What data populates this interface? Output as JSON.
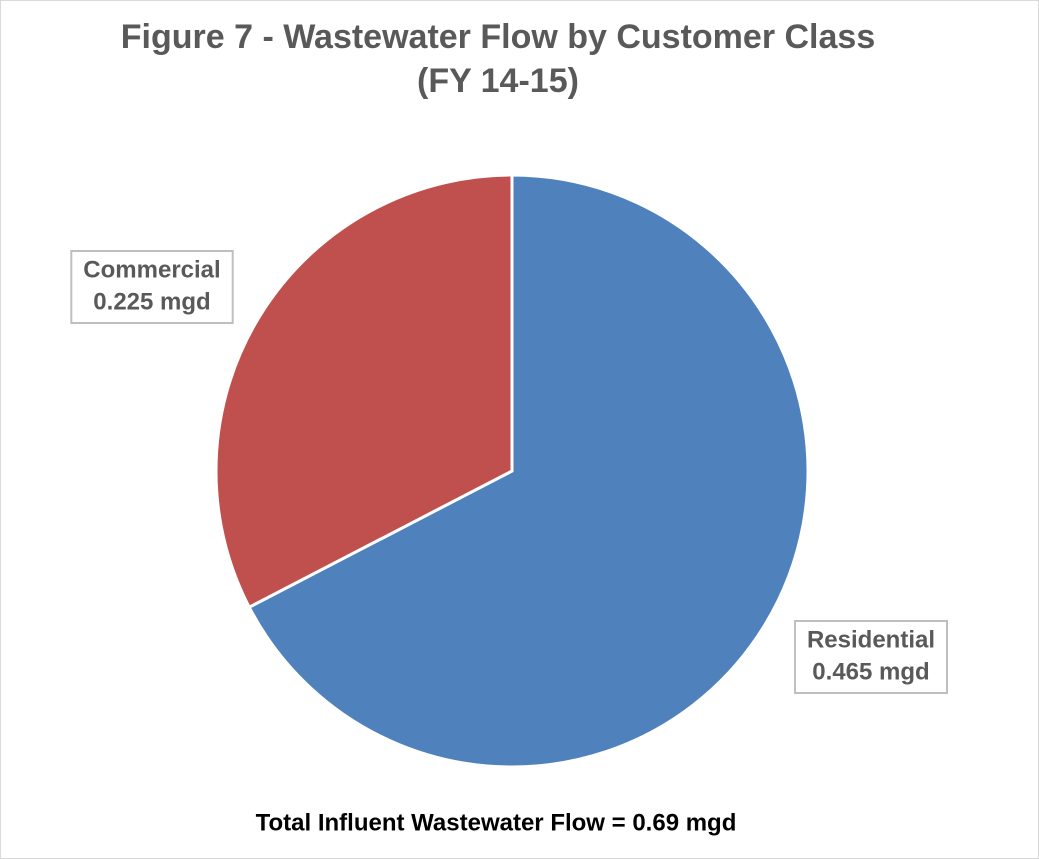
{
  "chart_data": {
    "type": "pie",
    "title": "Figure 7 - Wastewater Flow by Customer Class (FY 14-15)",
    "categories": [
      "Residential",
      "Commercial"
    ],
    "values": [
      0.465,
      0.225
    ],
    "value_labels": [
      "0.465 mgd",
      "0.225 mgd"
    ],
    "colors": [
      "#4f81bd",
      "#c0504d"
    ],
    "annotation": "Total Influent Wastewater Flow = 0.69 mgd"
  }
}
